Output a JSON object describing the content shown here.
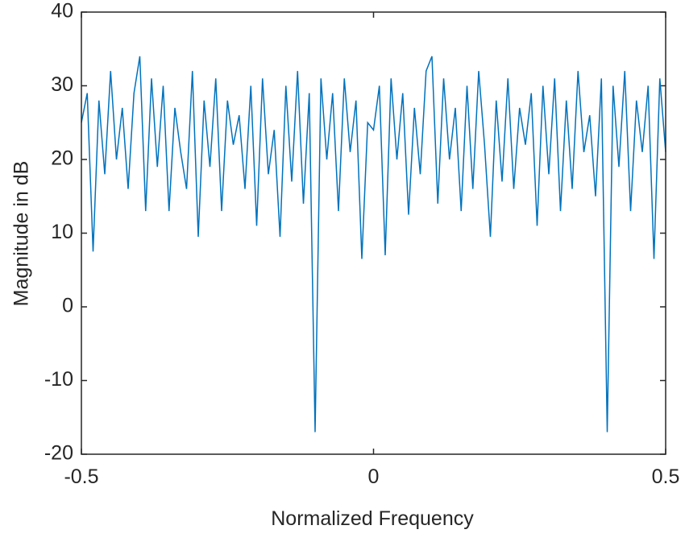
{
  "chart_data": {
    "type": "line",
    "xlabel": "Normalized Frequency",
    "ylabel": "Magnitude in dB",
    "x": [
      -0.5,
      -0.49,
      -0.48,
      -0.47,
      -0.46,
      -0.45,
      -0.44,
      -0.43,
      -0.42,
      -0.41,
      -0.4,
      -0.39,
      -0.38,
      -0.37,
      -0.36,
      -0.35,
      -0.34,
      -0.33,
      -0.32,
      -0.31,
      -0.3,
      -0.29,
      -0.28,
      -0.27,
      -0.26,
      -0.25,
      -0.24,
      -0.23,
      -0.22,
      -0.21,
      -0.2,
      -0.19,
      -0.18,
      -0.17,
      -0.16,
      -0.15,
      -0.14,
      -0.13,
      -0.12,
      -0.11,
      -0.1,
      -0.09,
      -0.08,
      -0.07,
      -0.06,
      -0.05,
      -0.04,
      -0.03,
      -0.02,
      -0.01,
      0,
      0.01,
      0.02,
      0.03,
      0.04,
      0.05,
      0.06,
      0.07,
      0.08,
      0.09,
      0.1,
      0.11,
      0.12,
      0.13,
      0.14,
      0.15,
      0.16,
      0.17,
      0.18,
      0.19,
      0.2,
      0.21,
      0.22,
      0.23,
      0.24,
      0.25,
      0.26,
      0.27,
      0.28,
      0.29,
      0.3,
      0.31,
      0.32,
      0.33,
      0.34,
      0.35,
      0.36,
      0.37,
      0.38,
      0.39,
      0.4,
      0.41,
      0.42,
      0.43,
      0.44,
      0.45,
      0.46,
      0.47,
      0.48,
      0.49,
      0.5
    ],
    "series": [
      {
        "color": "#0072bd",
        "values": [
          25,
          29,
          7.5,
          28,
          18,
          32,
          20,
          27,
          16,
          29,
          34,
          13,
          31,
          19,
          30,
          13,
          27,
          21,
          16,
          32,
          9.5,
          28,
          19,
          31,
          13,
          28,
          22,
          26,
          16,
          30,
          11,
          31,
          18,
          24,
          9.5,
          30,
          17,
          32,
          14,
          29,
          -17,
          31,
          20,
          29,
          13,
          31,
          21,
          28,
          6.5,
          25,
          24,
          30,
          7,
          31,
          20,
          29,
          12.5,
          27,
          18,
          32,
          34,
          14,
          31,
          20,
          27,
          13,
          30,
          16,
          32,
          22,
          9.5,
          28,
          17,
          31,
          16,
          27,
          22,
          29,
          11,
          30,
          18,
          31,
          13,
          28,
          16,
          32,
          21,
          26,
          15,
          31,
          -17,
          30,
          19,
          32,
          13,
          28,
          21,
          30,
          6.5,
          31,
          21
        ]
      }
    ],
    "xlim": [
      -0.5,
      0.5
    ],
    "xticks": [
      -0.5,
      0,
      0.5
    ],
    "ylim": [
      -20,
      40
    ],
    "yticks": [
      -20,
      -10,
      0,
      10,
      20,
      30,
      40
    ]
  }
}
